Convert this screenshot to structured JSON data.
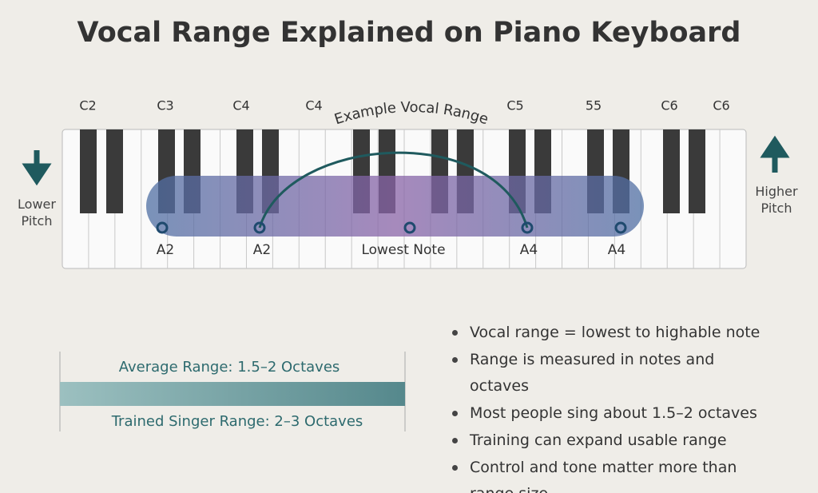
{
  "title": "Vocal Range Explained on Piano Keyboard",
  "octave_labels": [
    "C2",
    "C3",
    "C4",
    "C4",
    "C5",
    "55",
    "C6",
    "C6"
  ],
  "range_caption": "Example Vocal Range",
  "note_labels": [
    "A2",
    "A2",
    "Lowest Note",
    "A4",
    "A4"
  ],
  "lower_pitch": "Lower Pitch",
  "higher_pitch": "Higher Pitch",
  "average_range": "Average Range: 1.5–2 Octaves",
  "trained_range": "Trained Singer Range: 2–3 Octaves",
  "bullets": [
    "Vocal range = lowest to highable note",
    "Range is measured in notes and octaves",
    "Most people sing about 1.5–2 octaves",
    "Training can expand usable range",
    "Control and tone matter more than range size"
  ]
}
